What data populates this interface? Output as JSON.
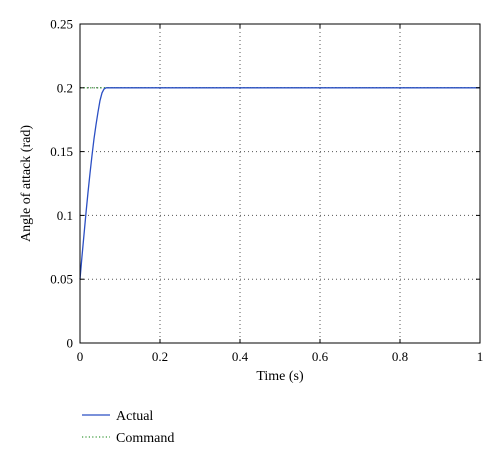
{
  "chart_data": {
    "type": "line",
    "title": "",
    "xlabel": "Time (s)",
    "ylabel": "Angle of attack (rad)",
    "xlim": [
      0,
      1
    ],
    "ylim": [
      0,
      0.25
    ],
    "x_ticks": [
      0,
      0.2,
      0.4,
      0.6,
      0.8,
      1
    ],
    "x_tick_labels": [
      "0",
      "0.2",
      "0.4",
      "0.6",
      "0.8",
      "1"
    ],
    "y_ticks": [
      0,
      0.05,
      0.1,
      0.15,
      0.2,
      0.25
    ],
    "y_tick_labels": [
      "0",
      "0.05",
      "0.1",
      "0.15",
      "0.2",
      "0.25"
    ],
    "grid": true,
    "legend_position": "bottom-left",
    "series": [
      {
        "name": "Actual",
        "style": "solid",
        "color": "#2b4fc4",
        "x": [
          0,
          0.005,
          0.01,
          0.015,
          0.02,
          0.025,
          0.03,
          0.035,
          0.04,
          0.045,
          0.05,
          0.055,
          0.06,
          0.065,
          0.07,
          0.1,
          0.2,
          0.4,
          0.6,
          0.8,
          1.0
        ],
        "y": [
          0.05,
          0.068,
          0.085,
          0.102,
          0.118,
          0.133,
          0.147,
          0.16,
          0.171,
          0.181,
          0.19,
          0.196,
          0.199,
          0.2,
          0.2,
          0.2,
          0.2,
          0.2,
          0.2,
          0.2,
          0.2
        ]
      },
      {
        "name": "Command",
        "style": "dotted",
        "color": "#3a9a3a",
        "x": [
          0,
          1
        ],
        "y": [
          0.2,
          0.2
        ]
      }
    ]
  }
}
